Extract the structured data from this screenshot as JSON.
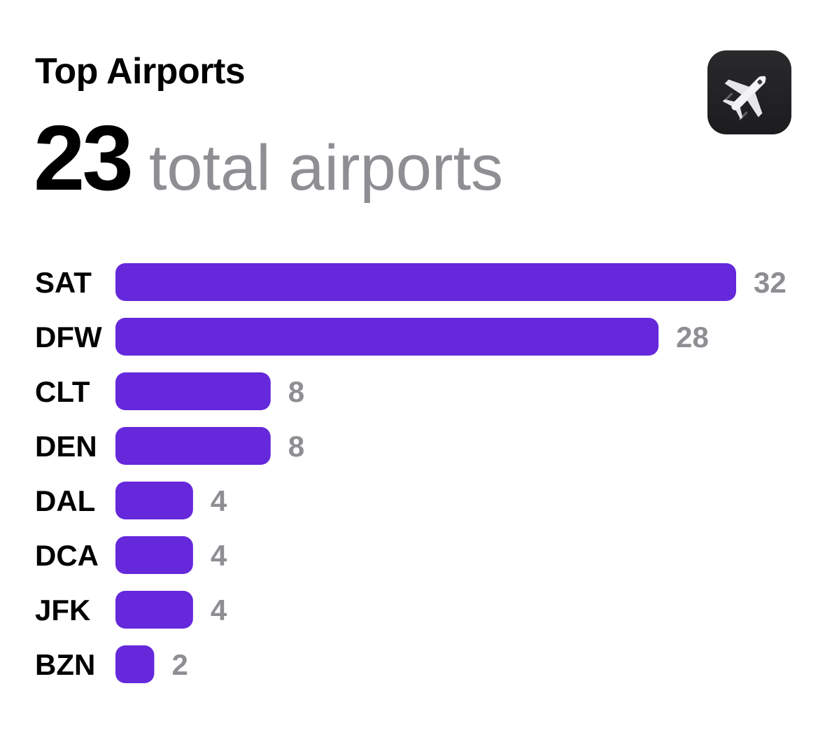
{
  "header": {
    "title": "Top Airports",
    "total_value": "23",
    "total_suffix": "total airports"
  },
  "app_icon": {
    "name": "airplane-icon"
  },
  "colors": {
    "bar": "#6528DB",
    "label": "#000000",
    "value": "#8E8E93"
  },
  "chart_data": {
    "type": "bar",
    "orientation": "horizontal",
    "categories": [
      "SAT",
      "DFW",
      "CLT",
      "DEN",
      "DAL",
      "DCA",
      "JFK",
      "BZN"
    ],
    "values": [
      32,
      28,
      8,
      8,
      4,
      4,
      4,
      2
    ],
    "title": "Top Airports",
    "xlabel": "",
    "ylabel": "",
    "grid": false,
    "legend": "none",
    "data_labels": "end"
  }
}
